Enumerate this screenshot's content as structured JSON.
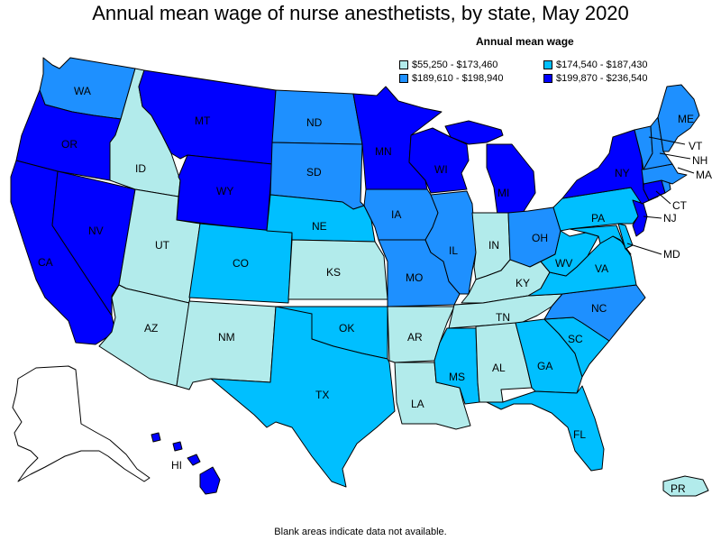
{
  "title": "Annual mean wage of nurse anesthetists, by state, May 2020",
  "legend": {
    "title": "Annual mean wage",
    "items": [
      {
        "label": "$55,250 - $173,460",
        "color": "#b2ebeb"
      },
      {
        "label": "$174,540 - $187,430",
        "color": "#00bfff"
      },
      {
        "label": "$189,610 - $198,940",
        "color": "#1e90ff"
      },
      {
        "label": "$199,870 - $236,540",
        "color": "#0000ff"
      }
    ]
  },
  "footnote": "Blank areas indicate data not available.",
  "states": {
    "WA": {
      "label": "WA",
      "tier": 2
    },
    "OR": {
      "label": "OR",
      "tier": 3
    },
    "CA": {
      "label": "CA",
      "tier": 3
    },
    "NV": {
      "label": "NV",
      "tier": 3
    },
    "ID": {
      "label": "ID",
      "tier": 0
    },
    "MT": {
      "label": "MT",
      "tier": 3
    },
    "WY": {
      "label": "WY",
      "tier": 3
    },
    "UT": {
      "label": "UT",
      "tier": 0
    },
    "AZ": {
      "label": "AZ",
      "tier": 0
    },
    "CO": {
      "label": "CO",
      "tier": 1
    },
    "NM": {
      "label": "NM",
      "tier": 0
    },
    "ND": {
      "label": "ND",
      "tier": 2
    },
    "SD": {
      "label": "SD",
      "tier": 2
    },
    "NE": {
      "label": "NE",
      "tier": 1
    },
    "KS": {
      "label": "KS",
      "tier": 0
    },
    "OK": {
      "label": "OK",
      "tier": 1
    },
    "TX": {
      "label": "TX",
      "tier": 1
    },
    "MN": {
      "label": "MN",
      "tier": 3
    },
    "IA": {
      "label": "IA",
      "tier": 2
    },
    "MO": {
      "label": "MO",
      "tier": 2
    },
    "AR": {
      "label": "AR",
      "tier": 0
    },
    "LA": {
      "label": "LA",
      "tier": 0
    },
    "WI": {
      "label": "WI",
      "tier": 3
    },
    "IL": {
      "label": "IL",
      "tier": 2
    },
    "MI": {
      "label": "MI",
      "tier": 3
    },
    "IN": {
      "label": "IN",
      "tier": 0
    },
    "OH": {
      "label": "OH",
      "tier": 2
    },
    "KY": {
      "label": "KY",
      "tier": 0
    },
    "TN": {
      "label": "TN",
      "tier": 0
    },
    "MS": {
      "label": "MS",
      "tier": 1
    },
    "AL": {
      "label": "AL",
      "tier": 0
    },
    "GA": {
      "label": "GA",
      "tier": 1
    },
    "FL": {
      "label": "FL",
      "tier": 1
    },
    "SC": {
      "label": "SC",
      "tier": 1
    },
    "NC": {
      "label": "NC",
      "tier": 2
    },
    "VA": {
      "label": "VA",
      "tier": 1
    },
    "WV": {
      "label": "WV",
      "tier": 1
    },
    "PA": {
      "label": "PA",
      "tier": 1
    },
    "NY": {
      "label": "NY",
      "tier": 3
    },
    "VT": {
      "label": "VT",
      "tier": 2
    },
    "NH": {
      "label": "NH",
      "tier": 2
    },
    "ME": {
      "label": "ME",
      "tier": 2
    },
    "MA": {
      "label": "MA",
      "tier": 2
    },
    "CT": {
      "label": "CT",
      "tier": 3
    },
    "NJ": {
      "label": "NJ",
      "tier": 3
    },
    "MD": {
      "label": "MD",
      "tier": 1
    },
    "DE": {
      "tier": 1
    },
    "RI": {
      "tier": 2
    },
    "HI": {
      "label": "HI",
      "tier": 3
    },
    "PR": {
      "label": "PR",
      "tier": 0
    },
    "AK": {
      "tier": -1
    }
  }
}
